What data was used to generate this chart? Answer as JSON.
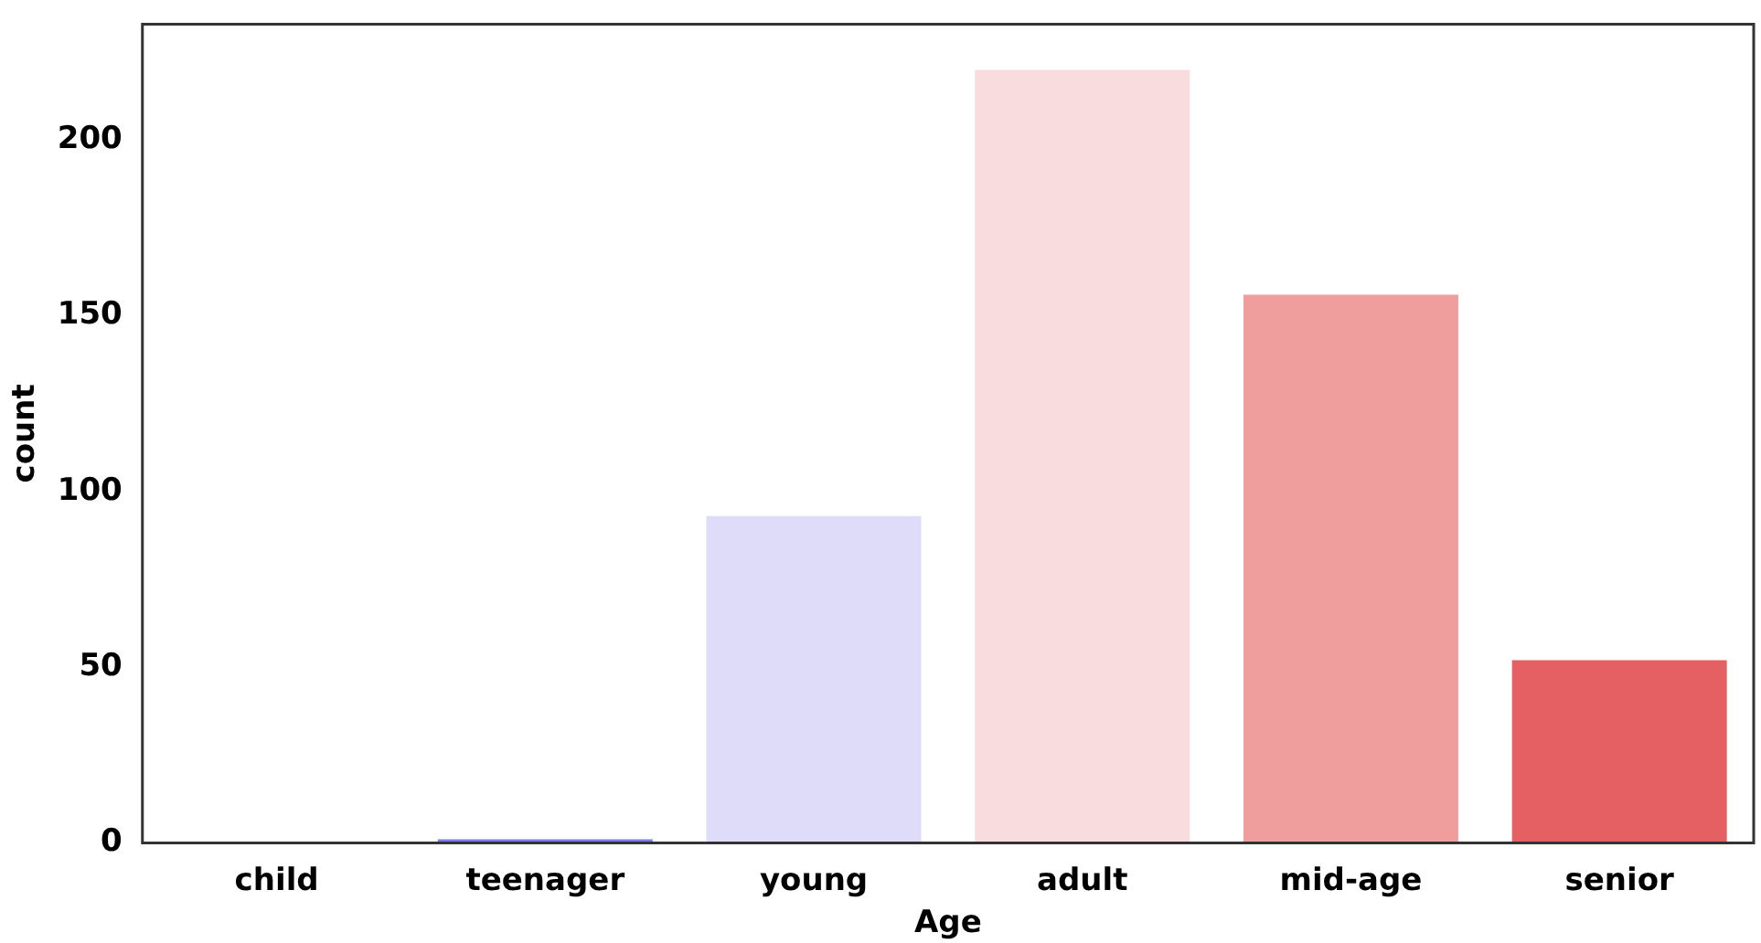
{
  "chart_data": {
    "type": "bar",
    "xlabel": "Age",
    "ylabel": "count",
    "categories": [
      "child",
      "teenager",
      "young",
      "adult",
      "mid-age",
      "senior"
    ],
    "values": [
      0,
      1,
      93,
      220,
      156,
      52
    ],
    "colors": [
      "#5a5ae6",
      "#7b7bec",
      "#dedcf8",
      "#f9dcdd",
      "#f09d9e",
      "#e46062"
    ],
    "ylim": [
      0,
      233
    ],
    "yticks": [
      0,
      50,
      100,
      150,
      200
    ],
    "grid": false,
    "legend": false
  }
}
